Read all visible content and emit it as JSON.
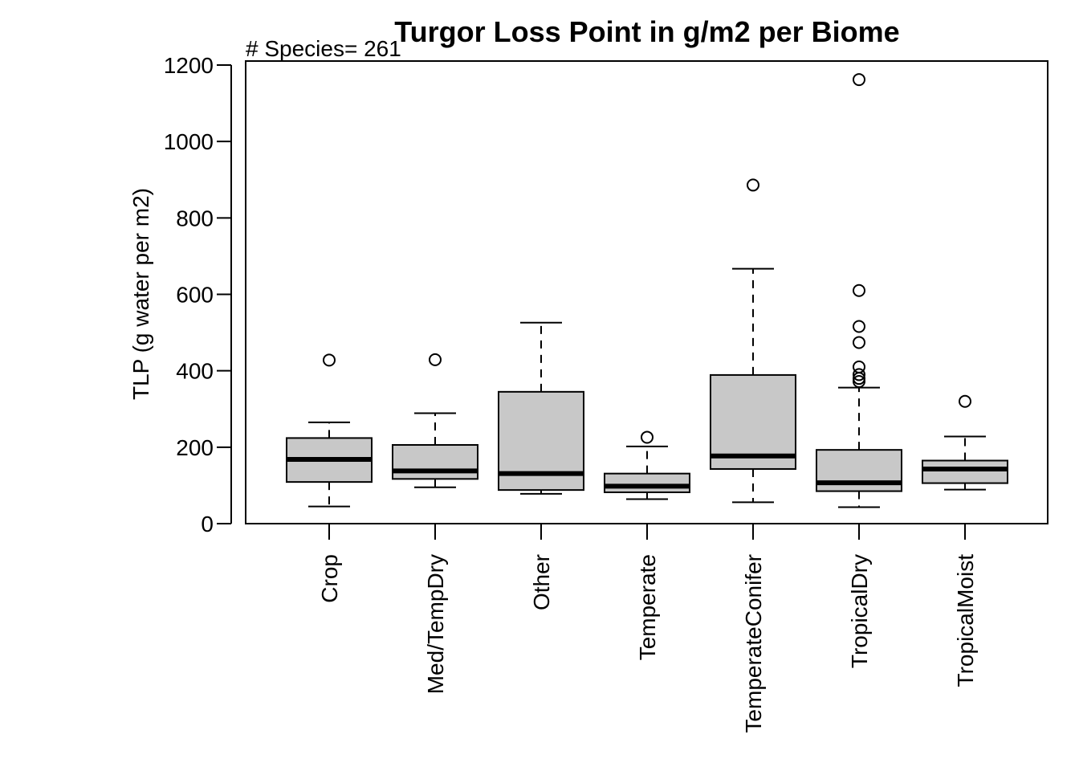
{
  "chart_data": {
    "type": "box",
    "title": "Turgor Loss Point in g/m2 per Biome",
    "annotation": "# Species= 261",
    "xlabel": "",
    "ylabel": "TLP (g water per m2)",
    "ylim": [
      0,
      1200
    ],
    "yticks": [
      "0",
      "200",
      "400",
      "600",
      "800",
      "1000",
      "1200"
    ],
    "categories": [
      "Crop",
      "Med/TempDry",
      "Other",
      "Temperate",
      "TemperateConifer",
      "TropicalDry",
      "TropicalMoist"
    ],
    "boxes": [
      {
        "category": "Crop",
        "whisker_low": 45,
        "q1": 109,
        "median": 168,
        "q3": 224,
        "whisker_high": 265,
        "outliers": [
          428
        ]
      },
      {
        "category": "Med/TempDry",
        "whisker_low": 95,
        "q1": 117,
        "median": 138,
        "q3": 206,
        "whisker_high": 289,
        "outliers": [
          429
        ]
      },
      {
        "category": "Other",
        "whisker_low": 78,
        "q1": 88,
        "median": 131,
        "q3": 345,
        "whisker_high": 526,
        "outliers": []
      },
      {
        "category": "Temperate",
        "whisker_low": 64,
        "q1": 82,
        "median": 98,
        "q3": 131,
        "whisker_high": 202,
        "outliers": [
          226
        ]
      },
      {
        "category": "TemperateConifer",
        "whisker_low": 56,
        "q1": 143,
        "median": 177,
        "q3": 389,
        "whisker_high": 667,
        "outliers": [
          886
        ]
      },
      {
        "category": "TropicalDry",
        "whisker_low": 43,
        "q1": 85,
        "median": 107,
        "q3": 193,
        "whisker_high": 356,
        "outliers": [
          372,
          380,
          390,
          410,
          474,
          516,
          610,
          1162
        ]
      },
      {
        "category": "TropicalMoist",
        "whisker_low": 89,
        "q1": 106,
        "median": 143,
        "q3": 165,
        "whisker_high": 228,
        "outliers": [
          320
        ]
      }
    ],
    "box_fill": "#c8c8c8",
    "line_color": "#000000"
  }
}
